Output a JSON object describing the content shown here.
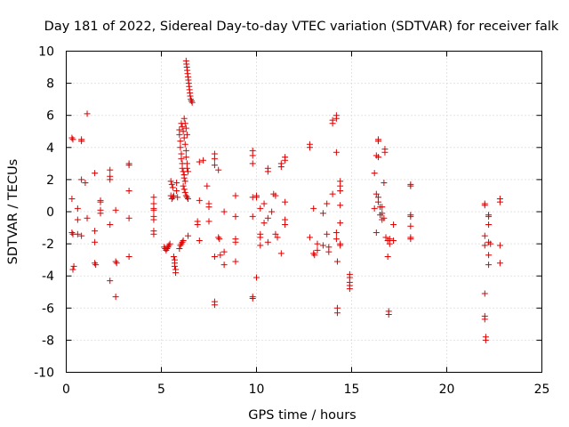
{
  "chart_data": {
    "type": "scatter",
    "title": "Day 181 of 2022, Sidereal Day-to-day VTEC variation (SDTVAR) for receiver falk",
    "xlabel": "GPS time / hours",
    "ylabel": "SDTVAR / TECUs",
    "xlim": [
      0,
      25
    ],
    "ylim": [
      -10,
      10
    ],
    "xticks": [
      0,
      5,
      10,
      15,
      20,
      25
    ],
    "yticks": [
      -10,
      -8,
      -6,
      -4,
      -2,
      0,
      2,
      4,
      6,
      8,
      10
    ],
    "grid": true,
    "marker": "+",
    "color": "#e00000",
    "series": [
      {
        "name": "SDTVAR",
        "points": [
          [
            0.3,
            4.6
          ],
          [
            0.35,
            4.5
          ],
          [
            0.3,
            0.8
          ],
          [
            0.3,
            -1.3
          ],
          [
            0.35,
            -1.4
          ],
          [
            0.4,
            -3.4
          ],
          [
            0.35,
            -3.6
          ],
          [
            0.6,
            0.2
          ],
          [
            0.6,
            -0.5
          ],
          [
            0.6,
            -1.4
          ],
          [
            0.8,
            4.5
          ],
          [
            0.8,
            4.4
          ],
          [
            0.8,
            2.0
          ],
          [
            0.8,
            -1.5
          ],
          [
            1.0,
            1.8
          ],
          [
            1.1,
            6.1
          ],
          [
            1.1,
            -0.4
          ],
          [
            1.5,
            2.4
          ],
          [
            1.5,
            -1.2
          ],
          [
            1.5,
            -1.9
          ],
          [
            1.5,
            -3.2
          ],
          [
            1.55,
            -3.3
          ],
          [
            1.8,
            0.7
          ],
          [
            1.8,
            0.6
          ],
          [
            1.8,
            0.1
          ],
          [
            1.8,
            -0.1
          ],
          [
            2.3,
            2.6
          ],
          [
            2.3,
            2.2
          ],
          [
            2.3,
            2.0
          ],
          [
            2.3,
            -0.8
          ],
          [
            2.3,
            -4.3
          ],
          [
            2.6,
            0.1
          ],
          [
            2.6,
            -3.1
          ],
          [
            2.65,
            -3.2
          ],
          [
            2.6,
            -5.3
          ],
          [
            3.3,
            3.0
          ],
          [
            3.3,
            2.9
          ],
          [
            3.3,
            1.3
          ],
          [
            3.3,
            -0.4
          ],
          [
            3.3,
            -2.8
          ],
          [
            4.6,
            0.9
          ],
          [
            4.6,
            0.5
          ],
          [
            4.6,
            0.2
          ],
          [
            4.6,
            0.1
          ],
          [
            4.6,
            -0.3
          ],
          [
            4.6,
            -0.5
          ],
          [
            4.6,
            -1.2
          ],
          [
            4.6,
            -1.4
          ],
          [
            5.15,
            -2.2
          ],
          [
            5.2,
            -2.3
          ],
          [
            5.25,
            -2.4
          ],
          [
            5.3,
            -2.3
          ],
          [
            5.35,
            -2.2
          ],
          [
            5.4,
            -2.1
          ],
          [
            5.45,
            -2.0
          ],
          [
            5.5,
            1.9
          ],
          [
            5.55,
            1.7
          ],
          [
            5.6,
            1.5
          ],
          [
            5.5,
            1.0
          ],
          [
            5.55,
            0.8
          ],
          [
            5.6,
            0.9
          ],
          [
            5.65,
            1.0
          ],
          [
            5.65,
            -2.8
          ],
          [
            5.7,
            -3.0
          ],
          [
            5.7,
            -3.2
          ],
          [
            5.7,
            -3.4
          ],
          [
            5.75,
            -3.6
          ],
          [
            5.75,
            -3.8
          ],
          [
            5.8,
            1.8
          ],
          [
            5.8,
            1.3
          ],
          [
            5.85,
            0.9
          ],
          [
            5.95,
            -2.3
          ],
          [
            6.0,
            -2.1
          ],
          [
            6.05,
            -2.0
          ],
          [
            6.1,
            -1.9
          ],
          [
            6.15,
            -1.8
          ],
          [
            5.95,
            5.1
          ],
          [
            5.95,
            4.8
          ],
          [
            6.0,
            4.4
          ],
          [
            6.0,
            4.0
          ],
          [
            6.05,
            3.6
          ],
          [
            6.05,
            3.3
          ],
          [
            6.1,
            3.0
          ],
          [
            6.1,
            2.7
          ],
          [
            6.15,
            2.5
          ],
          [
            6.2,
            2.3
          ],
          [
            6.2,
            2.1
          ],
          [
            6.25,
            1.9
          ],
          [
            6.05,
            5.5
          ],
          [
            6.1,
            5.3
          ],
          [
            6.15,
            5.0
          ],
          [
            6.2,
            4.6
          ],
          [
            6.25,
            4.2
          ],
          [
            6.3,
            3.8
          ],
          [
            6.3,
            3.4
          ],
          [
            6.35,
            3.0
          ],
          [
            6.15,
            1.6
          ],
          [
            6.2,
            1.4
          ],
          [
            6.25,
            1.2
          ],
          [
            6.3,
            1.0
          ],
          [
            6.35,
            0.9
          ],
          [
            6.4,
            0.8
          ],
          [
            6.2,
            5.8
          ],
          [
            6.25,
            5.5
          ],
          [
            6.3,
            5.2
          ],
          [
            6.35,
            4.8
          ],
          [
            6.3,
            9.4
          ],
          [
            6.32,
            9.2
          ],
          [
            6.34,
            9.0
          ],
          [
            6.36,
            8.8
          ],
          [
            6.38,
            8.6
          ],
          [
            6.4,
            8.4
          ],
          [
            6.42,
            8.2
          ],
          [
            6.44,
            8.0
          ],
          [
            6.46,
            7.8
          ],
          [
            6.48,
            7.6
          ],
          [
            6.5,
            7.4
          ],
          [
            6.52,
            7.2
          ],
          [
            6.55,
            7.0
          ],
          [
            6.58,
            6.9
          ],
          [
            6.62,
            6.8
          ],
          [
            6.35,
            2.7
          ],
          [
            6.4,
            2.5
          ],
          [
            6.4,
            -1.5
          ],
          [
            6.9,
            -0.6
          ],
          [
            6.9,
            -0.8
          ],
          [
            7.0,
            3.1
          ],
          [
            7.2,
            3.2
          ],
          [
            7.0,
            0.7
          ],
          [
            7.0,
            -1.8
          ],
          [
            7.4,
            1.6
          ],
          [
            7.5,
            0.5
          ],
          [
            7.5,
            0.3
          ],
          [
            7.5,
            -0.6
          ],
          [
            7.8,
            3.6
          ],
          [
            7.8,
            3.3
          ],
          [
            7.8,
            2.9
          ],
          [
            7.8,
            -2.8
          ],
          [
            7.8,
            -5.6
          ],
          [
            7.8,
            -5.8
          ],
          [
            8.0,
            2.6
          ],
          [
            8.0,
            -1.6
          ],
          [
            8.05,
            -1.7
          ],
          [
            8.1,
            -2.7
          ],
          [
            8.3,
            0.0
          ],
          [
            8.3,
            -2.5
          ],
          [
            8.3,
            -3.3
          ],
          [
            8.9,
            1.0
          ],
          [
            8.9,
            -0.3
          ],
          [
            8.9,
            -1.7
          ],
          [
            8.9,
            -1.9
          ],
          [
            8.9,
            -3.1
          ],
          [
            9.8,
            3.8
          ],
          [
            9.8,
            3.5
          ],
          [
            9.8,
            3.0
          ],
          [
            9.8,
            0.9
          ],
          [
            9.8,
            -0.3
          ],
          [
            9.8,
            -5.3
          ],
          [
            9.8,
            -5.4
          ],
          [
            10.0,
            1.0
          ],
          [
            10.0,
            0.9
          ],
          [
            10.0,
            -4.1
          ],
          [
            10.2,
            0.2
          ],
          [
            10.2,
            -1.4
          ],
          [
            10.2,
            -1.6
          ],
          [
            10.2,
            -2.1
          ],
          [
            10.4,
            0.5
          ],
          [
            10.4,
            -0.7
          ],
          [
            10.6,
            2.7
          ],
          [
            10.6,
            2.5
          ],
          [
            10.6,
            -0.4
          ],
          [
            10.6,
            -1.9
          ],
          [
            10.8,
            0.0
          ],
          [
            10.9,
            1.1
          ],
          [
            11.0,
            1.0
          ],
          [
            11.0,
            -1.4
          ],
          [
            11.1,
            -1.6
          ],
          [
            11.3,
            3.0
          ],
          [
            11.3,
            2.8
          ],
          [
            11.3,
            -2.6
          ],
          [
            11.5,
            3.4
          ],
          [
            11.5,
            3.2
          ],
          [
            11.5,
            0.6
          ],
          [
            11.5,
            -0.5
          ],
          [
            11.5,
            -0.8
          ],
          [
            12.8,
            4.2
          ],
          [
            12.8,
            4.0
          ],
          [
            12.8,
            -1.6
          ],
          [
            13.0,
            0.2
          ],
          [
            13.0,
            -2.6
          ],
          [
            13.05,
            -2.7
          ],
          [
            13.2,
            -2.4
          ],
          [
            13.2,
            -2.0
          ],
          [
            13.5,
            -2.1
          ],
          [
            13.5,
            -0.1
          ],
          [
            13.7,
            0.5
          ],
          [
            13.7,
            -1.4
          ],
          [
            13.8,
            -2.2
          ],
          [
            13.8,
            -2.5
          ],
          [
            14.0,
            1.1
          ],
          [
            14.0,
            5.7
          ],
          [
            14.0,
            5.5
          ],
          [
            14.2,
            6.0
          ],
          [
            14.2,
            5.8
          ],
          [
            14.2,
            3.7
          ],
          [
            14.2,
            -1.3
          ],
          [
            14.2,
            -1.7
          ],
          [
            14.25,
            -3.1
          ],
          [
            14.25,
            -6.0
          ],
          [
            14.25,
            -6.3
          ],
          [
            14.4,
            1.9
          ],
          [
            14.4,
            1.6
          ],
          [
            14.4,
            1.3
          ],
          [
            14.4,
            0.4
          ],
          [
            14.4,
            -0.7
          ],
          [
            14.4,
            -2.0
          ],
          [
            14.4,
            -2.1
          ],
          [
            14.9,
            -3.9
          ],
          [
            14.9,
            -4.1
          ],
          [
            14.9,
            -4.4
          ],
          [
            14.9,
            -4.6
          ],
          [
            14.9,
            -4.8
          ],
          [
            16.2,
            2.4
          ],
          [
            16.2,
            0.2
          ],
          [
            16.3,
            3.5
          ],
          [
            16.3,
            1.1
          ],
          [
            16.3,
            -1.3
          ],
          [
            16.4,
            4.5
          ],
          [
            16.4,
            4.4
          ],
          [
            16.4,
            3.4
          ],
          [
            16.4,
            0.9
          ],
          [
            16.4,
            0.6
          ],
          [
            16.5,
            0.3
          ],
          [
            16.5,
            -0.2
          ],
          [
            16.6,
            0.3
          ],
          [
            16.6,
            -0.1
          ],
          [
            16.6,
            -0.5
          ],
          [
            16.7,
            1.8
          ],
          [
            16.75,
            3.9
          ],
          [
            16.75,
            3.7
          ],
          [
            16.7,
            -0.4
          ],
          [
            16.8,
            -1.6
          ],
          [
            16.9,
            -1.8
          ],
          [
            16.9,
            -2.8
          ],
          [
            16.95,
            -6.2
          ],
          [
            16.95,
            -6.4
          ],
          [
            17.0,
            -1.7
          ],
          [
            17.0,
            -2.0
          ],
          [
            17.2,
            -0.8
          ],
          [
            17.2,
            -1.8
          ],
          [
            18.1,
            1.7
          ],
          [
            18.1,
            1.6
          ],
          [
            18.1,
            -0.2
          ],
          [
            18.1,
            -0.3
          ],
          [
            18.1,
            -0.9
          ],
          [
            18.1,
            -1.6
          ],
          [
            18.1,
            -1.7
          ],
          [
            22.0,
            0.5
          ],
          [
            22.0,
            0.4
          ],
          [
            22.0,
            -1.5
          ],
          [
            22.0,
            -2.1
          ],
          [
            22.0,
            -5.1
          ],
          [
            22.0,
            -6.5
          ],
          [
            22.0,
            -6.7
          ],
          [
            22.05,
            -7.8
          ],
          [
            22.05,
            -8.0
          ],
          [
            22.2,
            -0.2
          ],
          [
            22.2,
            -0.3
          ],
          [
            22.2,
            -0.8
          ],
          [
            22.2,
            -1.9
          ],
          [
            22.2,
            -2.7
          ],
          [
            22.2,
            -3.3
          ],
          [
            22.3,
            -2.0
          ],
          [
            22.8,
            0.8
          ],
          [
            22.8,
            0.6
          ],
          [
            22.8,
            -2.1
          ],
          [
            22.8,
            -3.2
          ]
        ]
      }
    ]
  }
}
